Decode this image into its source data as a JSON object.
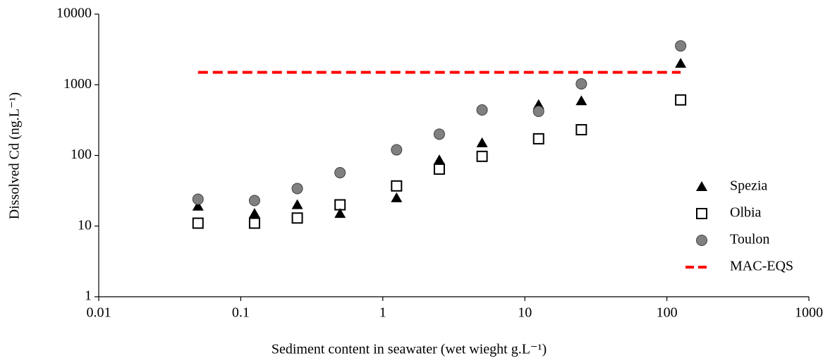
{
  "chart_data": {
    "type": "scatter",
    "xlabel": "Sediment content in seawater (wet wieght g.L⁻¹)",
    "ylabel": "Dissolved Cd (ng.L⁻¹)",
    "x": [
      0.05,
      0.125,
      0.25,
      0.5,
      1.25,
      2.5,
      5,
      12.5,
      25,
      125
    ],
    "series": [
      {
        "name": "Spezia",
        "marker": "triangle",
        "color": "#000000",
        "values": [
          19,
          15,
          20,
          15,
          25,
          86,
          150,
          520,
          590,
          2000
        ]
      },
      {
        "name": "Olbia",
        "marker": "square",
        "color": "#000000",
        "values": [
          11,
          11,
          13,
          20,
          37,
          64,
          97,
          172,
          231,
          610
        ]
      },
      {
        "name": "Toulon",
        "marker": "circle",
        "color": "#808080",
        "values": [
          24,
          23,
          34,
          57,
          120,
          200,
          440,
          420,
          1030,
          3550
        ]
      },
      {
        "name": "MAC-EQS",
        "marker": "dashed-line",
        "color": "#ff0000",
        "x": [
          0.05,
          125
        ],
        "values": [
          1500,
          1500
        ]
      }
    ],
    "xlog": true,
    "ylog": true,
    "xlim": [
      0.01,
      1000
    ],
    "xticks": [
      0.01,
      0.1,
      1,
      10,
      100,
      1000
    ],
    "ylim": [
      1,
      10000
    ],
    "yticks": [
      1,
      10,
      100,
      1000,
      10000
    ],
    "grid": false,
    "legend": "right"
  }
}
